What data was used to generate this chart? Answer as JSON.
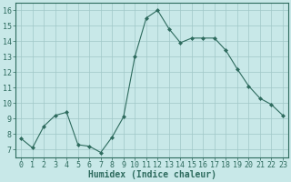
{
  "x": [
    0,
    1,
    2,
    3,
    4,
    5,
    6,
    7,
    8,
    9,
    10,
    11,
    12,
    13,
    14,
    15,
    16,
    17,
    18,
    19,
    20,
    21,
    22,
    23
  ],
  "y": [
    7.7,
    7.1,
    8.5,
    9.2,
    9.4,
    7.3,
    7.2,
    6.8,
    7.8,
    9.1,
    13.0,
    15.5,
    16.0,
    14.8,
    13.9,
    14.2,
    14.2,
    14.2,
    13.4,
    12.2,
    11.1,
    10.3,
    9.9,
    9.2
  ],
  "line_color": "#2e6b5e",
  "marker": "D",
  "marker_size": 2,
  "bg_color": "#c8e8e8",
  "grid_color": "#a0c8c8",
  "xlabel": "Humidex (Indice chaleur)",
  "ylim": [
    6.5,
    16.5
  ],
  "xlim": [
    -0.5,
    23.5
  ],
  "yticks": [
    7,
    8,
    9,
    10,
    11,
    12,
    13,
    14,
    15,
    16
  ],
  "xticks": [
    0,
    1,
    2,
    3,
    4,
    5,
    6,
    7,
    8,
    9,
    10,
    11,
    12,
    13,
    14,
    15,
    16,
    17,
    18,
    19,
    20,
    21,
    22,
    23
  ],
  "tick_label_fontsize": 6,
  "xlabel_fontsize": 7,
  "linewidth": 0.8
}
